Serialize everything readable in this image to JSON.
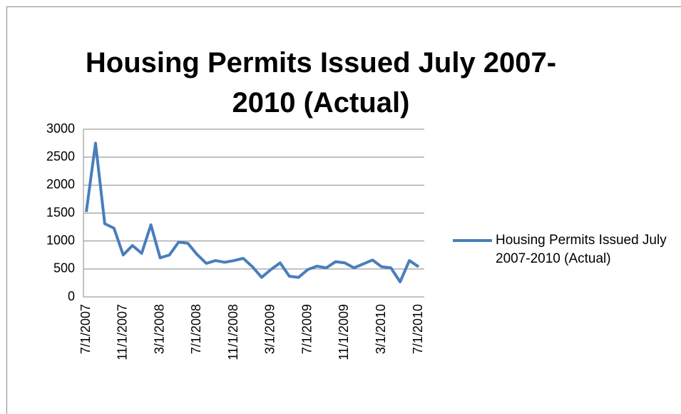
{
  "chart_data": {
    "type": "line",
    "title": "Housing Permits Issued July 2007-2010 (Actual)",
    "categories": [
      "7/1/2007",
      null,
      null,
      null,
      "11/1/2007",
      null,
      null,
      null,
      "3/1/2008",
      null,
      null,
      null,
      "7/1/2008",
      null,
      null,
      null,
      "11/1/2008",
      null,
      null,
      null,
      "3/1/2009",
      null,
      null,
      null,
      "7/1/2009",
      null,
      null,
      null,
      "11/1/2009",
      null,
      null,
      null,
      "3/1/2010",
      null,
      null,
      null,
      "7/1/2010"
    ],
    "series": [
      {
        "name": "Housing Permits Issued July 2007-2010 (Actual)",
        "color": "#4a7ebb",
        "values": [
          1520,
          2750,
          1310,
          1230,
          750,
          920,
          780,
          1290,
          700,
          750,
          980,
          960,
          760,
          600,
          650,
          620,
          650,
          690,
          540,
          350,
          490,
          610,
          370,
          350,
          490,
          550,
          520,
          630,
          610,
          520,
          590,
          660,
          540,
          520,
          270,
          650,
          540
        ]
      }
    ],
    "ylim": [
      0,
      3000
    ],
    "yticks": [
      0,
      500,
      1000,
      1500,
      2000,
      2500,
      3000
    ],
    "grid": true,
    "legend": "right"
  }
}
